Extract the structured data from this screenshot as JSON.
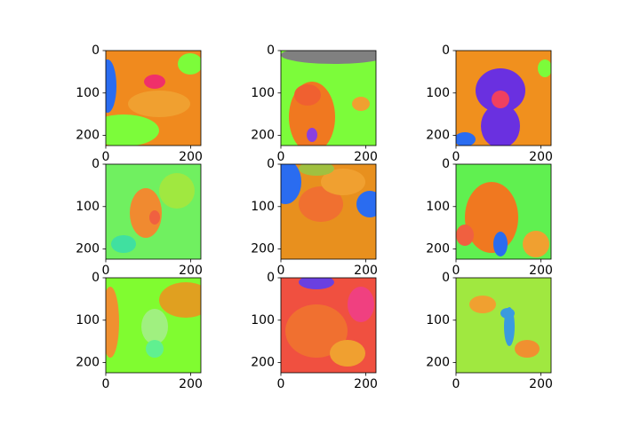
{
  "chart_data": [
    {
      "type": "image",
      "xlim": [
        0,
        224
      ],
      "ylim": [
        224,
        0
      ],
      "xticks": [
        0,
        200
      ],
      "yticks": [
        0,
        100,
        200
      ]
    },
    {
      "type": "image",
      "xlim": [
        0,
        224
      ],
      "ylim": [
        224,
        0
      ],
      "xticks": [
        0,
        200
      ],
      "yticks": [
        0,
        100,
        200
      ]
    },
    {
      "type": "image",
      "xlim": [
        0,
        224
      ],
      "ylim": [
        224,
        0
      ],
      "xticks": [
        0,
        200
      ],
      "yticks": [
        0,
        100,
        200
      ]
    },
    {
      "type": "image",
      "xlim": [
        0,
        224
      ],
      "ylim": [
        224,
        0
      ],
      "xticks": [
        0,
        200
      ],
      "yticks": [
        0,
        100,
        200
      ]
    },
    {
      "type": "image",
      "xlim": [
        0,
        224
      ],
      "ylim": [
        224,
        0
      ],
      "xticks": [
        0,
        200
      ],
      "yticks": [
        0,
        100,
        200
      ]
    },
    {
      "type": "image",
      "xlim": [
        0,
        224
      ],
      "ylim": [
        224,
        0
      ],
      "xticks": [
        0,
        200
      ],
      "yticks": [
        0,
        100,
        200
      ]
    },
    {
      "type": "image",
      "xlim": [
        0,
        224
      ],
      "ylim": [
        224,
        0
      ],
      "xticks": [
        0,
        200
      ],
      "yticks": [
        0,
        100,
        200
      ]
    },
    {
      "type": "image",
      "xlim": [
        0,
        224
      ],
      "ylim": [
        224,
        0
      ],
      "xticks": [
        0,
        200
      ],
      "yticks": [
        0,
        100,
        200
      ]
    },
    {
      "type": "image",
      "xlim": [
        0,
        224
      ],
      "ylim": [
        224,
        0
      ],
      "xticks": [
        0,
        200
      ],
      "yticks": [
        0,
        100,
        200
      ]
    }
  ]
}
